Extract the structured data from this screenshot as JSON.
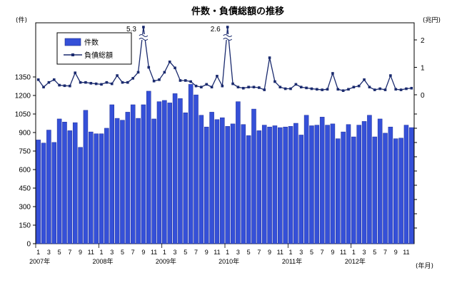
{
  "chart_data": {
    "type": "bar+line",
    "title": "件数・負債総額の推移",
    "left_unit": "(件)",
    "right_unit": "(兆円)",
    "x_unit": "(年月)",
    "left_axis": {
      "ylim": [
        0,
        1350
      ],
      "ticks": [
        "0",
        "150",
        "300",
        "450",
        "600",
        "750",
        "900",
        "1050",
        "1200",
        "1350"
      ]
    },
    "right_axis": {
      "ticks": [
        "0",
        "1",
        "2"
      ]
    },
    "x_month_ticks": [
      "1",
      "3",
      "5",
      "7",
      "9",
      "11"
    ],
    "years": [
      "2007年",
      "2008年",
      "2009年",
      "2010年",
      "2011年",
      "2012年"
    ],
    "legend": {
      "placement": "top-left",
      "items": [
        "件数",
        "負債総額"
      ]
    },
    "annotations": [
      "5.3",
      "2.6"
    ],
    "series": [
      {
        "name": "件数",
        "type": "bar",
        "values": [
          840,
          815,
          920,
          820,
          1010,
          985,
          915,
          980,
          780,
          1080,
          905,
          890,
          890,
          935,
          1125,
          1015,
          1000,
          1065,
          1125,
          1015,
          1125,
          1235,
          1010,
          1150,
          1160,
          1140,
          1215,
          1175,
          1060,
          1290,
          1205,
          1040,
          945,
          1065,
          1005,
          1020,
          950,
          970,
          1150,
          965,
          875,
          1090,
          915,
          960,
          945,
          955,
          940,
          945,
          950,
          975,
          880,
          1040,
          955,
          960,
          1025,
          960,
          970,
          850,
          905,
          965,
          865,
          960,
          990,
          1040,
          865,
          1010,
          895,
          945,
          850,
          855,
          960,
          940
        ]
      },
      {
        "name": "負債総額",
        "type": "line",
        "values": [
          0.55,
          0.28,
          0.45,
          0.55,
          0.35,
          0.33,
          0.32,
          0.8,
          0.45,
          0.45,
          0.42,
          0.4,
          0.38,
          0.45,
          0.4,
          0.7,
          0.45,
          0.45,
          0.6,
          0.82,
          5.3,
          1.0,
          0.5,
          0.55,
          0.82,
          1.2,
          0.98,
          0.52,
          0.52,
          0.48,
          0.32,
          0.28,
          0.38,
          0.28,
          0.68,
          0.32,
          2.6,
          0.4,
          0.28,
          0.24,
          0.28,
          0.28,
          0.26,
          0.18,
          1.35,
          0.48,
          0.28,
          0.22,
          0.22,
          0.38,
          0.28,
          0.25,
          0.22,
          0.2,
          0.18,
          0.2,
          0.78,
          0.2,
          0.15,
          0.2,
          0.28,
          0.32,
          0.55,
          0.28,
          0.18,
          0.22,
          0.18,
          0.7,
          0.2,
          0.18,
          0.22,
          0.24
        ]
      }
    ]
  }
}
